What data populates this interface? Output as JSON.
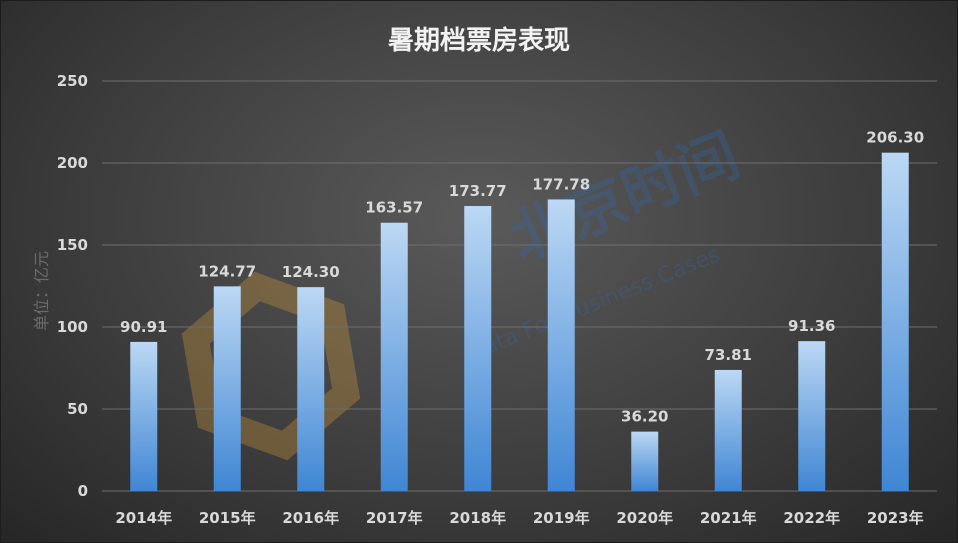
{
  "chart_data": {
    "type": "bar",
    "title": "暑期档票房表现",
    "ylabel": "单位：亿元",
    "xlabel": "",
    "categories": [
      "2014年",
      "2015年",
      "2016年",
      "2017年",
      "2018年",
      "2019年",
      "2020年",
      "2021年",
      "2022年",
      "2023年"
    ],
    "values": [
      90.91,
      124.77,
      124.3,
      163.57,
      173.77,
      177.78,
      36.2,
      73.81,
      91.36,
      206.3
    ],
    "value_labels": [
      "90.91",
      "124.77",
      "124.30",
      "163.57",
      "173.77",
      "177.78",
      "36.20",
      "73.81",
      "91.36",
      "206.30"
    ],
    "ylim": [
      0,
      250
    ],
    "yticks": [
      0,
      50,
      100,
      150,
      200,
      250
    ],
    "grid": true,
    "legend": "none",
    "colors": {
      "bar_top": "#bcd8f4",
      "bar_bottom": "#3f86d4",
      "grid": "#6e6e6e",
      "background": "#3e3e3e"
    }
  },
  "watermark": {
    "text": "北京时间",
    "subtext": "Data For Business Cases"
  }
}
